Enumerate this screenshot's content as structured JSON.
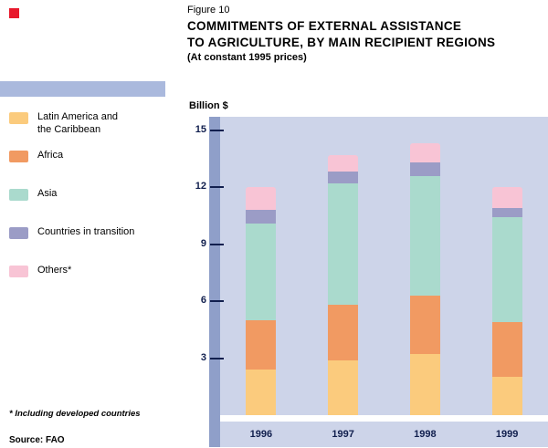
{
  "header": {
    "figure_label": "Figure 10",
    "title_line1": "COMMITMENTS OF EXTERNAL ASSISTANCE",
    "title_line2": "TO AGRICULTURE, BY MAIN RECIPIENT REGIONS",
    "subtitle": "(At constant 1995 prices)"
  },
  "axis": {
    "unit_label": "Billion $"
  },
  "legend": [
    {
      "label": "Latin America and\nthe Caribbean",
      "color": "#fbcb7d"
    },
    {
      "label": "Africa",
      "color": "#f19a62"
    },
    {
      "label": "Asia",
      "color": "#aadacd"
    },
    {
      "label": "Countries in transition",
      "color": "#9b9cc6"
    },
    {
      "label": "Others*",
      "color": "#f8c4d5"
    }
  ],
  "footnote": "* Including developed countries",
  "source": "Source: FAO",
  "colors": {
    "accent_red": "#e8192c",
    "plot_background": "#cdd4e9",
    "axis_spine": "#8f9fc9",
    "legend_band": "#aab9dd",
    "axis_text": "#111f4e"
  },
  "chart_data": {
    "type": "bar",
    "stacked": true,
    "title": "Commitments of external assistance to agriculture, by main recipient regions (at constant 1995 prices)",
    "categories": [
      "1996",
      "1997",
      "1998",
      "1999"
    ],
    "series": [
      {
        "name": "Latin America and the Caribbean",
        "color": "#fbcb7d",
        "values": [
          2.4,
          2.9,
          3.2,
          2.0
        ]
      },
      {
        "name": "Africa",
        "color": "#f19a62",
        "values": [
          2.6,
          2.9,
          3.1,
          2.9
        ]
      },
      {
        "name": "Asia",
        "color": "#aadacd",
        "values": [
          5.1,
          6.4,
          6.3,
          5.5
        ]
      },
      {
        "name": "Countries in transition",
        "color": "#9b9cc6",
        "values": [
          0.7,
          0.6,
          0.7,
          0.5
        ]
      },
      {
        "name": "Others*",
        "color": "#f8c4d5",
        "values": [
          1.2,
          0.9,
          1.0,
          1.1
        ]
      }
    ],
    "totals": [
      12.0,
      13.7,
      14.3,
      12.0
    ],
    "xlabel": "",
    "ylabel": "Billion $",
    "ylim": [
      0,
      15.7
    ],
    "yticks": [
      3,
      6,
      9,
      12,
      15
    ],
    "grid": false,
    "legend_position": "left"
  }
}
